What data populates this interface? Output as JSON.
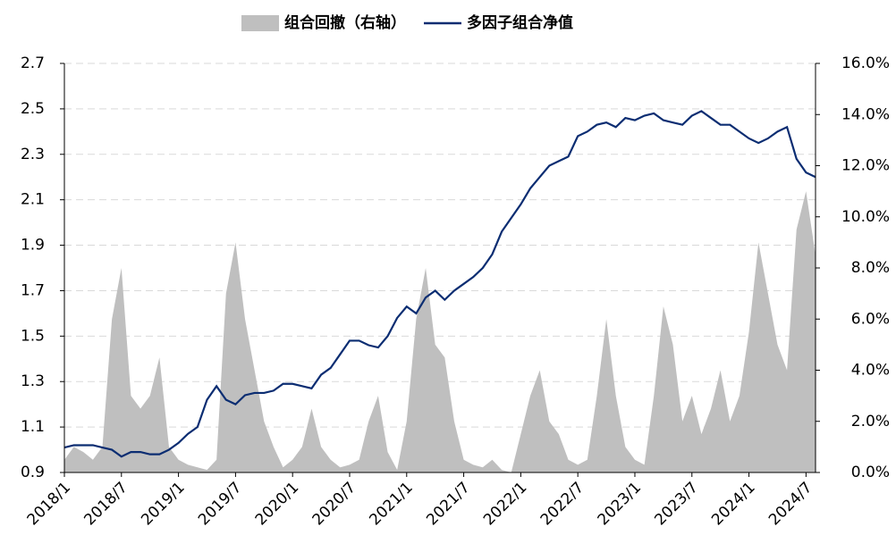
{
  "chart_data": {
    "type": "line",
    "x": [
      "2018/1",
      "2018/2",
      "2018/3",
      "2018/4",
      "2018/5",
      "2018/6",
      "2018/7",
      "2018/8",
      "2018/9",
      "2018/10",
      "2018/11",
      "2018/12",
      "2019/1",
      "2019/2",
      "2019/3",
      "2019/4",
      "2019/5",
      "2019/6",
      "2019/7",
      "2019/8",
      "2019/9",
      "2019/10",
      "2019/11",
      "2019/12",
      "2020/1",
      "2020/2",
      "2020/3",
      "2020/4",
      "2020/5",
      "2020/6",
      "2020/7",
      "2020/8",
      "2020/9",
      "2020/10",
      "2020/11",
      "2020/12",
      "2021/1",
      "2021/2",
      "2021/3",
      "2021/4",
      "2021/5",
      "2021/6",
      "2021/7",
      "2021/8",
      "2021/9",
      "2021/10",
      "2021/11",
      "2021/12",
      "2022/1",
      "2022/2",
      "2022/3",
      "2022/4",
      "2022/5",
      "2022/6",
      "2022/7",
      "2022/8",
      "2022/9",
      "2022/10",
      "2022/11",
      "2022/12",
      "2023/1",
      "2023/2",
      "2023/3",
      "2023/4",
      "2023/5",
      "2023/6",
      "2023/7",
      "2023/8",
      "2023/9",
      "2023/10",
      "2023/11",
      "2023/12",
      "2024/1",
      "2024/2",
      "2024/3",
      "2024/4",
      "2024/5",
      "2024/6",
      "2024/7",
      "2024/8"
    ],
    "series": [
      {
        "name": "组合回撤（右轴）",
        "type": "area",
        "axis": "y2",
        "color": "#bfbfbf",
        "values": [
          0.5,
          1.0,
          0.8,
          0.5,
          1.0,
          6.0,
          8.0,
          3.0,
          2.5,
          3.0,
          4.5,
          1.0,
          0.5,
          0.3,
          0.2,
          0.1,
          0.5,
          7.0,
          9.0,
          6.0,
          4.0,
          2.0,
          1.0,
          0.2,
          0.5,
          1.0,
          2.5,
          1.0,
          0.5,
          0.2,
          0.3,
          0.5,
          2.0,
          3.0,
          0.8,
          0.1,
          2.0,
          6.0,
          8.0,
          5.0,
          4.5,
          2.0,
          0.5,
          0.3,
          0.2,
          0.5,
          0.1,
          0.0,
          1.5,
          3.0,
          4.0,
          2.0,
          1.5,
          0.5,
          0.3,
          0.5,
          3.0,
          6.0,
          3.0,
          1.0,
          0.5,
          0.3,
          3.0,
          6.5,
          5.0,
          2.0,
          3.0,
          1.5,
          2.5,
          4.0,
          2.0,
          3.0,
          5.5,
          9.0,
          7.0,
          5.0,
          4.0,
          9.5,
          11.0,
          8.5
        ]
      },
      {
        "name": "多因子组合净值",
        "type": "line",
        "color": "#0b2d72",
        "values": [
          1.01,
          1.02,
          1.02,
          1.02,
          1.01,
          1.0,
          0.97,
          0.99,
          0.99,
          0.98,
          0.98,
          1.0,
          1.03,
          1.07,
          1.1,
          1.22,
          1.28,
          1.22,
          1.2,
          1.24,
          1.25,
          1.25,
          1.26,
          1.29,
          1.29,
          1.28,
          1.27,
          1.33,
          1.36,
          1.42,
          1.48,
          1.48,
          1.46,
          1.45,
          1.5,
          1.58,
          1.63,
          1.6,
          1.67,
          1.7,
          1.66,
          1.7,
          1.73,
          1.76,
          1.8,
          1.86,
          1.96,
          2.02,
          2.08,
          2.15,
          2.2,
          2.25,
          2.27,
          2.29,
          2.38,
          2.4,
          2.43,
          2.44,
          2.42,
          2.46,
          2.45,
          2.47,
          2.48,
          2.45,
          2.44,
          2.43,
          2.47,
          2.49,
          2.46,
          2.43,
          2.43,
          2.4,
          2.37,
          2.35,
          2.37,
          2.4,
          2.42,
          2.28,
          2.22,
          2.2
        ]
      }
    ],
    "xticks": [
      "2018/1",
      "2018/7",
      "2019/1",
      "2019/7",
      "2020/1",
      "2020/7",
      "2021/1",
      "2021/7",
      "2022/1",
      "2022/7",
      "2023/1",
      "2023/7",
      "2024/1",
      "2024/7"
    ],
    "ylim": [
      0.9,
      2.7
    ],
    "yticks": [
      0.9,
      1.1,
      1.3,
      1.5,
      1.7,
      1.9,
      2.1,
      2.3,
      2.5,
      2.7
    ],
    "y2lim": [
      0,
      16
    ],
    "y2ticks": [
      {
        "value": 0,
        "label": "0.0%"
      },
      {
        "value": 2,
        "label": "2.0%"
      },
      {
        "value": 4,
        "label": "4.0%"
      },
      {
        "value": 6,
        "label": "6.0%"
      },
      {
        "value": 8,
        "label": "8.0%"
      },
      {
        "value": 10,
        "label": "10.0%"
      },
      {
        "value": 12,
        "label": "12.0%"
      },
      {
        "value": 14,
        "label": "14.0%"
      },
      {
        "value": 16,
        "label": "16.0%"
      }
    ],
    "grid": true
  }
}
